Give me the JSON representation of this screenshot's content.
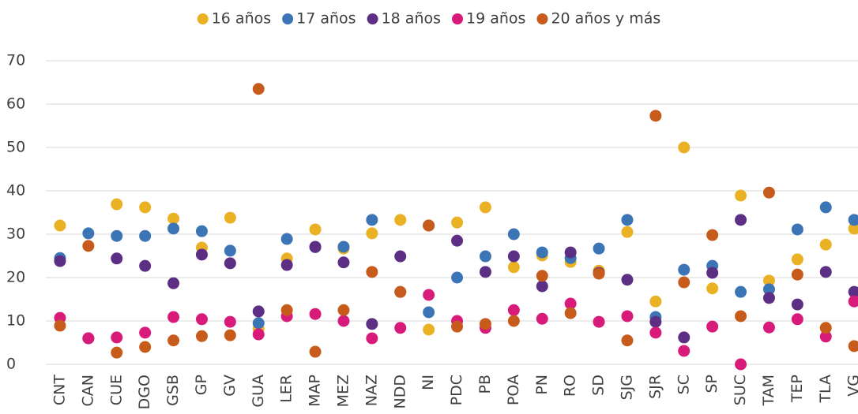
{
  "chart_data": {
    "type": "scatter",
    "categories": [
      "CNT",
      "CAN",
      "CUE",
      "DGO",
      "GSB",
      "GP",
      "GV",
      "GUA",
      "LER",
      "MAP",
      "MEZ",
      "NAZ",
      "NDD",
      "NI",
      "PDC",
      "PB",
      "POA",
      "PN",
      "RO",
      "SD",
      "SJG",
      "SJR",
      "SC",
      "SP",
      "SUC",
      "TAM",
      "TEP",
      "TLA",
      "VG"
    ],
    "series": [
      {
        "name": "16 años",
        "color": "#ebb124",
        "values": [
          32,
          6,
          36.9,
          36.2,
          33.6,
          26.9,
          33.8,
          8.2,
          24.4,
          31.1,
          26.7,
          30.2,
          33.3,
          8,
          32.7,
          36.2,
          22.4,
          25.1,
          23.6,
          21.6,
          30.5,
          14.5,
          50,
          17.5,
          38.9,
          19.3,
          24.2,
          27.6,
          31.3
        ]
      },
      {
        "name": "17 años",
        "color": "#3b75b5",
        "values": [
          24.5,
          30.2,
          29.6,
          29.6,
          31.3,
          30.7,
          26.2,
          9.5,
          28.9,
          27,
          27.1,
          33.3,
          16.7,
          12,
          20,
          24.9,
          30,
          25.8,
          24.5,
          26.7,
          33.3,
          10.9,
          21.8,
          22.7,
          16.7,
          17.3,
          31.1,
          36.2,
          33.3
        ]
      },
      {
        "name": "18 años",
        "color": "#5c2e84",
        "values": [
          23.8,
          6,
          24.4,
          22.7,
          18.7,
          25.3,
          23.3,
          12.2,
          22.9,
          27.1,
          23.5,
          9.3,
          24.9,
          32,
          28.5,
          21.3,
          24.9,
          18,
          25.8,
          21.1,
          19.5,
          9.8,
          6.2,
          21.1,
          33.3,
          15.3,
          13.8,
          21.3,
          16.7
        ]
      },
      {
        "name": "19 años",
        "color": "#d81b7b",
        "values": [
          10.7,
          6,
          6.2,
          7.3,
          10.9,
          10.4,
          9.8,
          6.9,
          11.1,
          11.6,
          10,
          6,
          8.4,
          16,
          10,
          8.4,
          12.5,
          10.5,
          14,
          9.8,
          11.1,
          7.3,
          3.1,
          8.7,
          0,
          8.5,
          10.4,
          6.4,
          14.5
        ]
      },
      {
        "name": "20 años y más",
        "color": "#c75b1c",
        "values": [
          8.9,
          27.3,
          2.7,
          4,
          5.5,
          6.5,
          6.7,
          63.5,
          12.5,
          2.9,
          12.5,
          21.3,
          16.7,
          32,
          8.7,
          9.3,
          10,
          20.4,
          11.8,
          20.9,
          5.5,
          57.3,
          18.9,
          29.8,
          11.1,
          39.6,
          20.7,
          8.4,
          4.2
        ]
      }
    ],
    "ylim": [
      0,
      70
    ],
    "yticks": [
      0,
      10,
      20,
      30,
      40,
      50,
      60,
      70
    ],
    "grid": true,
    "legend": "top"
  }
}
